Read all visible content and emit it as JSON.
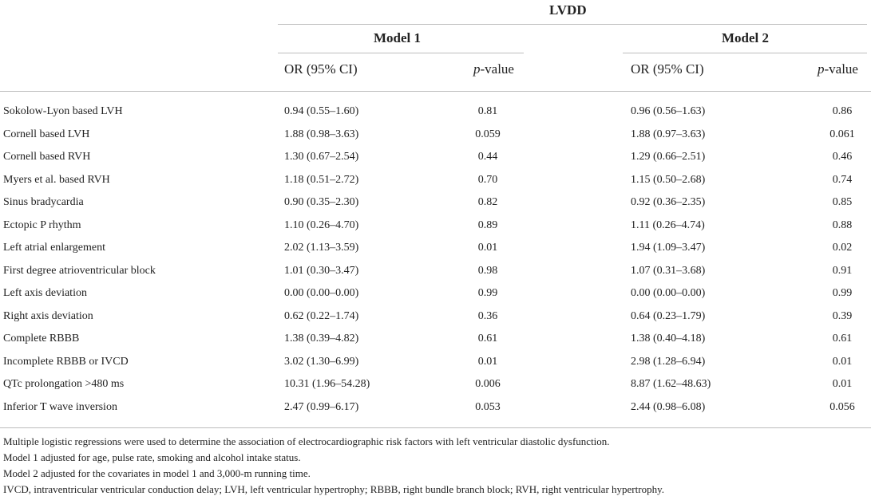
{
  "header": {
    "group_title": "LVDD",
    "model1_title": "Model 1",
    "model2_title": "Model 2",
    "or_label": "OR (95% CI)",
    "p_label_italic": "p",
    "p_label_rest": "-value"
  },
  "rows": [
    {
      "label": "Sokolow-Lyon based LVH",
      "or1": "0.94 (0.55–1.60)",
      "p1": "0.81",
      "or2": "0.96 (0.56–1.63)",
      "p2": "0.86"
    },
    {
      "label": "Cornell based LVH",
      "or1": "1.88 (0.98–3.63)",
      "p1": "0.059",
      "or2": "1.88 (0.97–3.63)",
      "p2": "0.061"
    },
    {
      "label": "Cornell based RVH",
      "or1": "1.30 (0.67–2.54)",
      "p1": "0.44",
      "or2": "1.29 (0.66–2.51)",
      "p2": "0.46"
    },
    {
      "label": "Myers et al. based RVH",
      "or1": "1.18 (0.51–2.72)",
      "p1": "0.70",
      "or2": "1.15 (0.50–2.68)",
      "p2": "0.74"
    },
    {
      "label": "Sinus bradycardia",
      "or1": "0.90 (0.35–2.30)",
      "p1": "0.82",
      "or2": "0.92 (0.36–2.35)",
      "p2": "0.85"
    },
    {
      "label": "Ectopic P rhythm",
      "or1": "1.10 (0.26–4.70)",
      "p1": "0.89",
      "or2": "1.11 (0.26–4.74)",
      "p2": "0.88"
    },
    {
      "label": "Left atrial enlargement",
      "or1": "2.02 (1.13–3.59)",
      "p1": "0.01",
      "or2": "1.94 (1.09–3.47)",
      "p2": "0.02"
    },
    {
      "label": "First degree atrioventricular block",
      "or1": "1.01 (0.30–3.47)",
      "p1": "0.98",
      "or2": "1.07 (0.31–3.68)",
      "p2": "0.91"
    },
    {
      "label": "Left axis deviation",
      "or1": "0.00 (0.00–0.00)",
      "p1": "0.99",
      "or2": "0.00 (0.00–0.00)",
      "p2": "0.99"
    },
    {
      "label": "Right axis deviation",
      "or1": "0.62 (0.22–1.74)",
      "p1": "0.36",
      "or2": "0.64 (0.23–1.79)",
      "p2": "0.39"
    },
    {
      "label": "Complete RBBB",
      "or1": "1.38 (0.39–4.82)",
      "p1": "0.61",
      "or2": "1.38 (0.40–4.18)",
      "p2": "0.61"
    },
    {
      "label": "Incomplete RBBB or IVCD",
      "or1": "3.02 (1.30–6.99)",
      "p1": "0.01",
      "or2": "2.98 (1.28–6.94)",
      "p2": "0.01"
    },
    {
      "label": "QTc prolongation >480 ms",
      "or1": "10.31 (1.96–54.28)",
      "p1": "0.006",
      "or2": "8.87 (1.62–48.63)",
      "p2": "0.01"
    },
    {
      "label": "Inferior T wave inversion",
      "or1": "2.47 (0.99–6.17)",
      "p1": "0.053",
      "or2": "2.44 (0.98–6.08)",
      "p2": "0.056"
    }
  ],
  "footnotes": [
    "Multiple logistic regressions were used to determine the association of electrocardiographic risk factors with left ventricular diastolic dysfunction.",
    "Model 1 adjusted for age, pulse rate, smoking and alcohol intake status.",
    "Model 2 adjusted for the covariates in model 1 and 3,000-m running time.",
    "IVCD, intraventricular ventricular conduction delay; LVH, left ventricular hypertrophy; RBBB, right bundle branch block; RVH, right ventricular hypertrophy."
  ]
}
